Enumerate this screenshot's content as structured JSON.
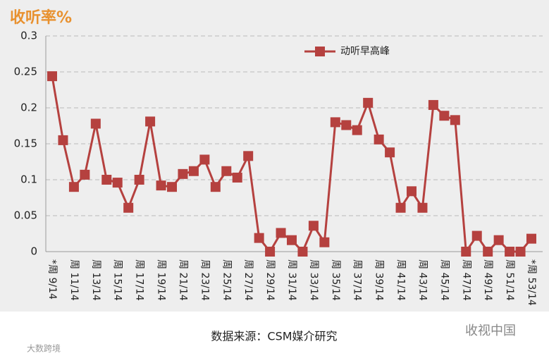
{
  "chart_data": {
    "type": "line",
    "title": "收听率%",
    "categories": [
      "*周 9/14",
      null,
      "周 11/14",
      null,
      "周 13/14",
      null,
      "周 15/14",
      null,
      "周 17/14",
      null,
      "周 19/14",
      null,
      "周 21/14",
      null,
      "周 23/14",
      null,
      "周 25/14",
      null,
      "周 27/14",
      null,
      "周 29/14",
      null,
      "周 31/14",
      null,
      "周 33/14",
      null,
      "周 35/14",
      null,
      "周 37/14",
      null,
      "周 39/14",
      null,
      "周 41/14",
      null,
      "周 43/14",
      null,
      "周 45/14",
      null,
      "周 47/14",
      null,
      "周 49/14",
      null,
      "周 51/14",
      null,
      "*周 53/14"
    ],
    "series": [
      {
        "name": "动听早高峰",
        "color": "#b5413f",
        "values": [
          0.244,
          0.155,
          0.09,
          0.107,
          0.178,
          0.1,
          0.096,
          0.061,
          0.1,
          0.181,
          0.092,
          0.09,
          0.108,
          0.112,
          0.128,
          0.09,
          0.112,
          0.103,
          0.133,
          0.019,
          0,
          0.026,
          0.016,
          0,
          0.036,
          0.013,
          0.18,
          0.176,
          0.169,
          0.207,
          0.156,
          0.138,
          0.061,
          0.084,
          0.061,
          0.204,
          0.189,
          0.183,
          0,
          0.022,
          0,
          0.016,
          0,
          0,
          0.018
        ]
      }
    ],
    "ylim": [
      0,
      0.3
    ],
    "yticks": [
      0,
      0.05,
      0.1,
      0.15,
      0.2,
      0.25,
      0.3
    ],
    "grid": true,
    "legend": "top-right"
  },
  "source": "数据来源：CSM媒介研究",
  "watermarks": [
    "收视中国",
    "大数跨境"
  ]
}
